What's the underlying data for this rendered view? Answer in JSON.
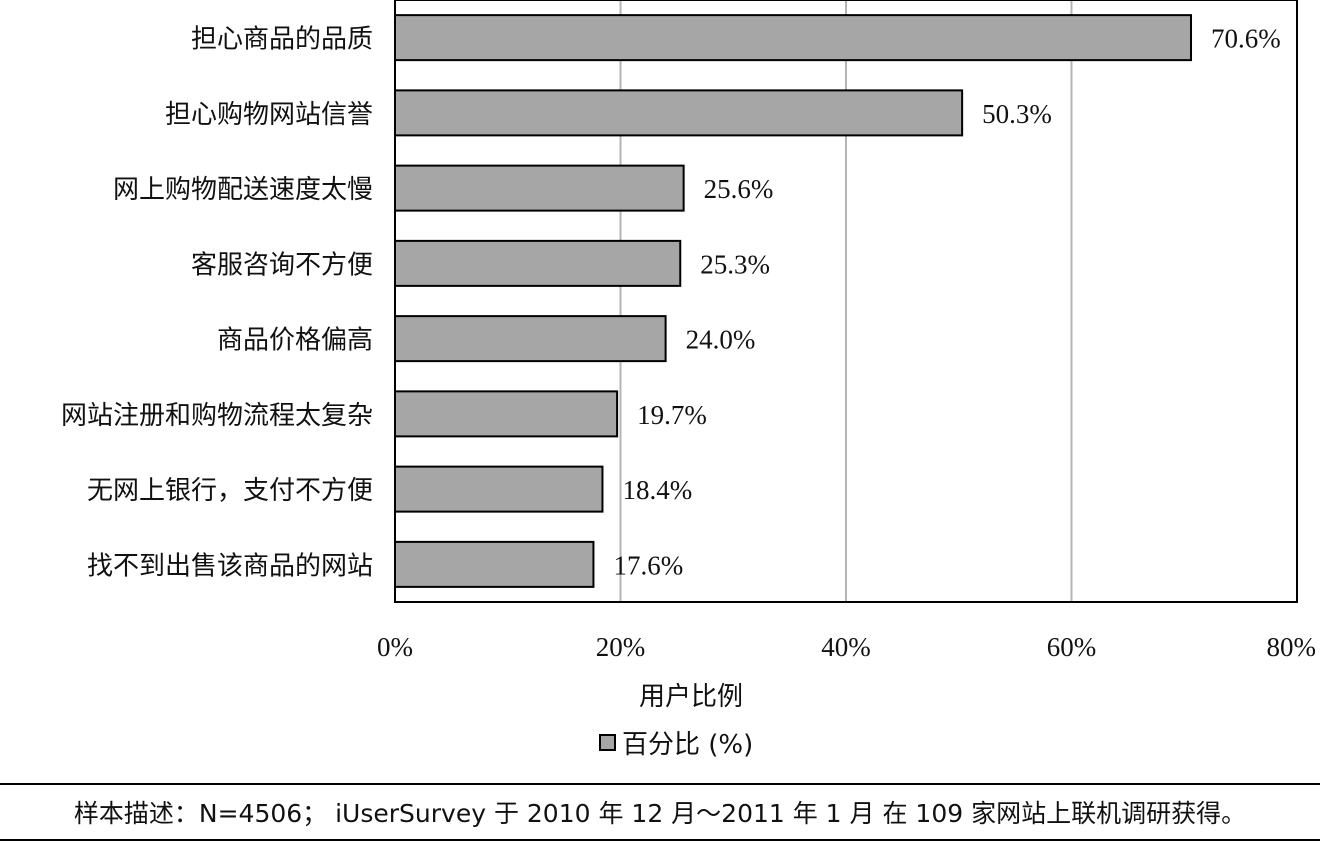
{
  "chart_data": {
    "type": "bar",
    "orientation": "horizontal",
    "categories": [
      "担心商品的品质",
      "担心购物网站信誉",
      "网上购物配送速度太慢",
      "客服咨询不方便",
      "商品价格偏高",
      "网站注册和购物流程太复杂",
      "无网上银行，支付不方便",
      "找不到出售该商品的网站"
    ],
    "values": [
      70.6,
      50.3,
      25.6,
      25.3,
      24.0,
      19.7,
      18.4,
      17.6
    ],
    "value_labels": [
      "70.6%",
      "50.3%",
      "25.6%",
      "25.3%",
      "24.0%",
      "19.7%",
      "18.4%",
      "17.6%"
    ],
    "series": [
      {
        "name": "百分比 (%)",
        "values": [
          70.6,
          50.3,
          25.6,
          25.3,
          24.0,
          19.7,
          18.4,
          17.6
        ]
      }
    ],
    "xlim": [
      0,
      80
    ],
    "xticks": [
      0,
      20,
      40,
      60,
      80
    ],
    "xtick_labels": [
      "0%",
      "20%",
      "40%",
      "60%",
      "80%"
    ],
    "xlabel": "用户比例",
    "ylabel": "",
    "grid": true,
    "legend_placement": "bottom",
    "bar_color": "#a6a6a6"
  },
  "footer": {
    "note": "样本描述：N=4506； iUserSurvey 于 2010 年 12 月～2011 年 1 月 在 109 家网站上联机调研获得。"
  }
}
